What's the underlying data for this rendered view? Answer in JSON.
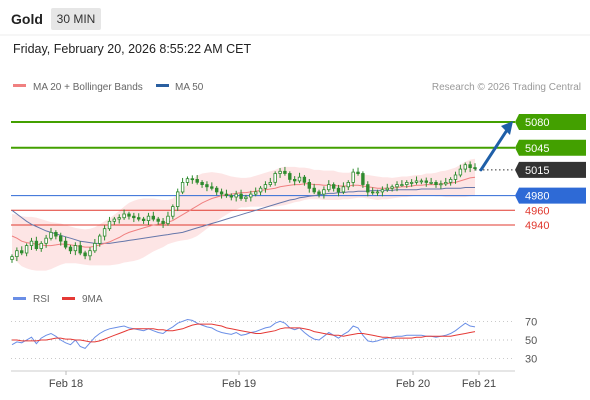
{
  "header": {
    "instrument": "Gold",
    "timeframe": "30 MIN",
    "datetime": "Friday, February 20, 2026 8:55:22 AM CET"
  },
  "legend": {
    "ma20_label": "MA 20 + Bollinger Bands",
    "ma50_label": "MA 50",
    "credit": "Research © 2026 Trading Central",
    "rsi_label": "RSI",
    "ma9_label": "9MA"
  },
  "colors": {
    "green_level": "#43a000",
    "blue_level": "#2e6ad6",
    "red_level": "#e0392f",
    "current_price": "#333333",
    "ma20": "#f08080",
    "ma50": "#6677aa",
    "bollinger_fill": "#fde0e0",
    "candle": "#2e8b2e",
    "arrow": "#1f5fa8",
    "rsi": "#6a8ee6",
    "ma9": "#e53935"
  },
  "chart_data": [
    {
      "type": "candlestick",
      "name": "price",
      "x_labels": [
        "Feb 18",
        "Feb 19",
        "Feb 20",
        "Feb 21"
      ],
      "y_range": [
        4872,
        5110
      ],
      "levels": [
        {
          "label": "5080",
          "value": 5080,
          "kind": "resistance",
          "color": "#43a000"
        },
        {
          "label": "5045",
          "value": 5045,
          "kind": "resistance",
          "color": "#43a000"
        },
        {
          "label": "5015",
          "value": 5015,
          "kind": "current",
          "color": "#333333"
        },
        {
          "label": "4980",
          "value": 4980,
          "kind": "pivot",
          "color": "#2e6ad6"
        },
        {
          "label": "4960",
          "value": 4960,
          "kind": "support",
          "color": "#e0392f"
        },
        {
          "label": "4940",
          "value": 4940,
          "kind": "support",
          "color": "#e0392f"
        }
      ],
      "closes": [
        4897,
        4905,
        4902,
        4912,
        4918,
        4908,
        4915,
        4922,
        4930,
        4925,
        4918,
        4910,
        4905,
        4912,
        4902,
        4898,
        4905,
        4915,
        4925,
        4935,
        4945,
        4948,
        4950,
        4955,
        4952,
        4950,
        4948,
        4946,
        4952,
        4948,
        4945,
        4942,
        4952,
        4965,
        4985,
        4998,
        5003,
        5002,
        4998,
        4995,
        4992,
        4990,
        4985,
        4982,
        4980,
        4978,
        4982,
        4976,
        4978,
        4982,
        4985,
        4990,
        4995,
        4998,
        5010,
        5013,
        5010,
        5002,
        5000,
        5005,
        4998,
        4990,
        4985,
        4982,
        4988,
        4995,
        4990,
        4985,
        4992,
        4998,
        5012,
        5010,
        4995,
        4985,
        4984,
        4985,
        4988,
        4990,
        4992,
        4995,
        4995,
        4998,
        4998,
        5000,
        5000,
        4998,
        4998,
        4995,
        4996,
        4998,
        5002,
        5008,
        5016,
        5022,
        5018,
        5017
      ],
      "ma20": [
        4925,
        4922,
        4918,
        4916,
        4915,
        4914,
        4913,
        4912,
        4912,
        4913,
        4914,
        4914,
        4913,
        4912,
        4911,
        4910,
        4910,
        4911,
        4913,
        4915,
        4917,
        4920,
        4923,
        4927,
        4930,
        4932,
        4934,
        4936,
        4938,
        4940,
        4941,
        4942,
        4944,
        4946,
        4950,
        4954,
        4958,
        4962,
        4966,
        4970,
        4973,
        4976,
        4978,
        4980,
        4981,
        4982,
        4983,
        4984,
        4984,
        4985,
        4986,
        4987,
        4988,
        4989,
        4990,
        4992,
        4993,
        4994,
        4995,
        4995,
        4996,
        4996,
        4995,
        4995,
        4994,
        4994,
        4994,
        4993,
        4993,
        4993,
        4994,
        4994,
        4993,
        4992,
        4991,
        4990,
        4990,
        4990,
        4990,
        4991,
        4992,
        4992,
        4993,
        4994,
        4994,
        4995,
        4995,
        4995,
        4996,
        4996,
        4997,
        4998,
        5000,
        5002,
        5004,
        5005
      ],
      "ma50": [
        4960,
        4955,
        4950,
        4945,
        4941,
        4938,
        4935,
        4932,
        4930,
        4928,
        4926,
        4924,
        4922,
        4920,
        4918,
        4917,
        4916,
        4915,
        4915,
        4915,
        4915,
        4916,
        4917,
        4918,
        4919,
        4920,
        4921,
        4922,
        4923,
        4924,
        4925,
        4926,
        4927,
        4928,
        4929,
        4930,
        4932,
        4934,
        4936,
        4938,
        4940,
        4942,
        4944,
        4946,
        4948,
        4950,
        4952,
        4954,
        4956,
        4958,
        4960,
        4962,
        4964,
        4966,
        4968,
        4970,
        4972,
        4974,
        4975,
        4977,
        4978,
        4979,
        4980,
        4981,
        4982,
        4983,
        4983,
        4984,
        4984,
        4985,
        4985,
        4986,
        4986,
        4986,
        4987,
        4987,
        4987,
        4987,
        4987,
        4988,
        4988,
        4988,
        4988,
        4988,
        4989,
        4989,
        4989,
        4989,
        4989,
        4990,
        4990,
        4990,
        4990,
        4991,
        4991,
        4991
      ],
      "bb_width": [
        30,
        32,
        34,
        35,
        36,
        36,
        35,
        34,
        32,
        30,
        28,
        26,
        25,
        24,
        24,
        24,
        25,
        26,
        28,
        30,
        32,
        34,
        36,
        38,
        40,
        41,
        41,
        40,
        38,
        36,
        34,
        32,
        30,
        30,
        32,
        35,
        38,
        40,
        41,
        40,
        38,
        36,
        33,
        30,
        27,
        24,
        22,
        20,
        20,
        20,
        21,
        22,
        23,
        24,
        25,
        26,
        26,
        25,
        24,
        23,
        22,
        21,
        20,
        20,
        20,
        20,
        20,
        19,
        18,
        18,
        18,
        17,
        16,
        16,
        16,
        16,
        15,
        15,
        14,
        14,
        14,
        14,
        14,
        14,
        14,
        15,
        15,
        16,
        17,
        18,
        19,
        20,
        22,
        24,
        25,
        25
      ]
    },
    {
      "type": "line",
      "name": "rsi_panel",
      "y_range": [
        20,
        80
      ],
      "yticks": [
        "70",
        "50",
        "30"
      ],
      "ytick_values": [
        70,
        50,
        30
      ],
      "rsi": [
        45,
        48,
        47,
        50,
        53,
        46,
        52,
        55,
        57,
        54,
        50,
        47,
        45,
        50,
        43,
        41,
        47,
        53,
        57,
        60,
        62,
        63,
        64,
        65,
        63,
        62,
        61,
        60,
        62,
        60,
        58,
        57,
        61,
        64,
        68,
        70,
        72,
        71,
        68,
        66,
        64,
        63,
        60,
        58,
        57,
        56,
        58,
        55,
        56,
        58,
        59,
        61,
        63,
        64,
        68,
        70,
        68,
        63,
        61,
        63,
        58,
        54,
        51,
        50,
        54,
        58,
        55,
        52,
        56,
        59,
        65,
        63,
        55,
        49,
        48,
        49,
        51,
        52,
        53,
        54,
        54,
        55,
        55,
        55,
        55,
        54,
        54,
        53,
        54,
        55,
        57,
        60,
        64,
        68,
        65,
        64
      ],
      "ma9": [
        50,
        50,
        49,
        49,
        49,
        49,
        50,
        50,
        51,
        52,
        52,
        51,
        51,
        50,
        50,
        49,
        48,
        48,
        49,
        51,
        53,
        55,
        57,
        59,
        61,
        62,
        62,
        62,
        62,
        62,
        61,
        61,
        60,
        60,
        61,
        62,
        64,
        66,
        67,
        67,
        67,
        67,
        66,
        65,
        63,
        62,
        61,
        60,
        59,
        58,
        57,
        57,
        58,
        59,
        60,
        62,
        63,
        63,
        63,
        63,
        62,
        61,
        59,
        58,
        57,
        56,
        55,
        55,
        54,
        55,
        56,
        57,
        57,
        56,
        55,
        54,
        53,
        53,
        52,
        52,
        52,
        52,
        52,
        53,
        53,
        54,
        54,
        54,
        54,
        54,
        54,
        55,
        56,
        57,
        58,
        59
      ]
    }
  ]
}
